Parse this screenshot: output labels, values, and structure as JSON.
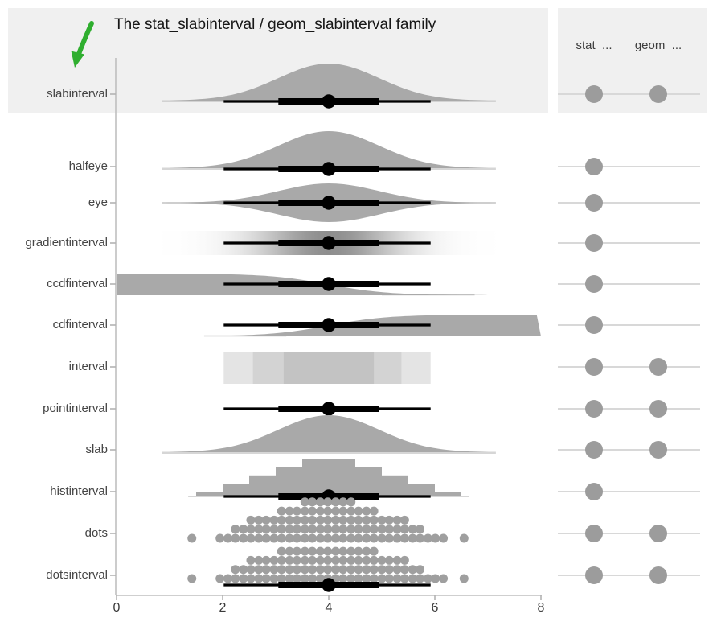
{
  "title": "The stat_slabinterval / geom_slabinterval family",
  "annotation": {
    "arrow_points_to": "slabinterval",
    "arrow_color": "#2fae2f"
  },
  "facet_columns": {
    "stat_label": "stat_...",
    "geom_label": "geom_..."
  },
  "colors": {
    "slab_fill": "#a9a9a9",
    "interval_color": "#000000",
    "dot_fill": "#9f9f9f",
    "legend_dot_fill": "#9c9c9c",
    "legend_line": "#d8d8d8",
    "highlight_bg": "#f0f0f0",
    "axis_line": "#bfbfbf",
    "tick_mark": "#b3b3b3",
    "support_line": "#c8c8c8",
    "band_light": "#e4e4e4",
    "band_mid": "#d3d3d3",
    "band_dark": "#c3c3c3"
  },
  "chart_data": {
    "type": "slabinterval-family",
    "x_axis": {
      "range": [
        0,
        8
      ],
      "ticks": [
        0,
        2,
        4,
        6,
        8
      ],
      "tick_labels": [
        "0",
        "2",
        "4",
        "6",
        "8"
      ]
    },
    "distribution": {
      "mean": 4,
      "sd": 0.95,
      "support": [
        0.85,
        7.15
      ]
    },
    "interval": {
      "point": 4,
      "thick": [
        3.05,
        4.95
      ],
      "thin": [
        2.02,
        5.92
      ]
    },
    "rows": [
      {
        "label": "slabinterval",
        "kind": "slabinterval",
        "stat": true,
        "geom": true,
        "highlighted": true
      },
      {
        "label": "halfeye",
        "kind": "halfeye",
        "stat": true,
        "geom": false,
        "highlighted": false
      },
      {
        "label": "eye",
        "kind": "eye",
        "stat": true,
        "geom": false,
        "highlighted": false
      },
      {
        "label": "gradientinterval",
        "kind": "gradientinterval",
        "stat": true,
        "geom": false,
        "highlighted": false
      },
      {
        "label": "ccdfinterval",
        "kind": "ccdfinterval",
        "stat": true,
        "geom": false,
        "highlighted": false
      },
      {
        "label": "cdfinterval",
        "kind": "cdfinterval",
        "stat": true,
        "geom": false,
        "highlighted": false
      },
      {
        "label": "interval",
        "kind": "interval",
        "stat": true,
        "geom": true,
        "highlighted": false
      },
      {
        "label": "pointinterval",
        "kind": "pointinterval",
        "stat": true,
        "geom": true,
        "highlighted": false
      },
      {
        "label": "slab",
        "kind": "slab",
        "stat": true,
        "geom": true,
        "highlighted": false
      },
      {
        "label": "histinterval",
        "kind": "histinterval",
        "stat": true,
        "geom": false,
        "highlighted": false
      },
      {
        "label": "dots",
        "kind": "dots",
        "stat": true,
        "geom": true,
        "highlighted": false
      },
      {
        "label": "dotsinterval",
        "kind": "dotsinterval",
        "stat": true,
        "geom": true,
        "highlighted": false
      }
    ],
    "interval_band_segments": [
      [
        2.02,
        5.92
      ],
      [
        2.57,
        5.37
      ],
      [
        3.15,
        4.85
      ]
    ],
    "histogram": {
      "bin_start": 1.5,
      "bin_width": 0.5,
      "rel_heights": [
        0.11,
        0.33,
        0.57,
        0.8,
        1,
        1,
        0.8,
        0.57,
        0.33,
        0.11
      ]
    },
    "dot_columns": [
      [
        1.42,
        1
      ],
      [
        1.95,
        1
      ],
      [
        2.1,
        1
      ],
      [
        2.24,
        2
      ],
      [
        2.39,
        2
      ],
      [
        2.53,
        3
      ],
      [
        2.68,
        3
      ],
      [
        2.82,
        3
      ],
      [
        2.97,
        3
      ],
      [
        3.11,
        4
      ],
      [
        3.26,
        4
      ],
      [
        3.4,
        4
      ],
      [
        3.55,
        5
      ],
      [
        3.69,
        5
      ],
      [
        3.84,
        5
      ],
      [
        3.98,
        5
      ],
      [
        4.13,
        5
      ],
      [
        4.27,
        5
      ],
      [
        4.42,
        5
      ],
      [
        4.56,
        4
      ],
      [
        4.71,
        4
      ],
      [
        4.85,
        4
      ],
      [
        5,
        3
      ],
      [
        5.14,
        3
      ],
      [
        5.29,
        3
      ],
      [
        5.43,
        3
      ],
      [
        5.58,
        2
      ],
      [
        5.72,
        2
      ],
      [
        5.87,
        1
      ],
      [
        6.01,
        1
      ],
      [
        6.16,
        1
      ],
      [
        6.55,
        1
      ]
    ],
    "dotsinterval_columns": [
      [
        1.42,
        1
      ],
      [
        1.95,
        1
      ],
      [
        2.1,
        1
      ],
      [
        2.24,
        2
      ],
      [
        2.39,
        2
      ],
      [
        2.53,
        3
      ],
      [
        2.68,
        3
      ],
      [
        2.82,
        3
      ],
      [
        2.97,
        3
      ],
      [
        3.11,
        4
      ],
      [
        3.26,
        4
      ],
      [
        3.4,
        4
      ],
      [
        3.55,
        4
      ],
      [
        3.69,
        4
      ],
      [
        3.84,
        4
      ],
      [
        3.98,
        4
      ],
      [
        4.13,
        4
      ],
      [
        4.27,
        4
      ],
      [
        4.42,
        4
      ],
      [
        4.56,
        4
      ],
      [
        4.71,
        4
      ],
      [
        4.85,
        4
      ],
      [
        5,
        3
      ],
      [
        5.14,
        3
      ],
      [
        5.29,
        3
      ],
      [
        5.43,
        3
      ],
      [
        5.58,
        2
      ],
      [
        5.72,
        2
      ],
      [
        5.87,
        1
      ],
      [
        6.01,
        1
      ],
      [
        6.16,
        1
      ],
      [
        6.55,
        1
      ]
    ]
  }
}
